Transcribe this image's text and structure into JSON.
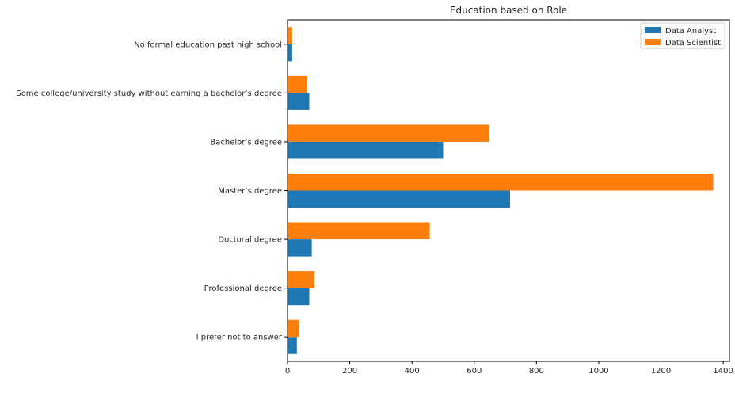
{
  "chart_data": {
    "type": "bar",
    "orientation": "horizontal",
    "title": "Education based on Role",
    "xlabel": "",
    "ylabel": "",
    "xlim": [
      0,
      1420
    ],
    "xticks": [
      0,
      200,
      400,
      600,
      800,
      1000,
      1200,
      1400
    ],
    "grid": false,
    "legend_position": "top-right",
    "categories": [
      "No formal education past high school",
      "Some college/university study without earning a bachelor’s degree",
      "Bachelor’s degree",
      "Master’s degree",
      "Doctoral degree",
      "Professional degree",
      "I prefer not to answer"
    ],
    "series": [
      {
        "name": "Data Analyst",
        "color": "#1f77b4",
        "values": [
          15,
          70,
          500,
          715,
          78,
          70,
          30
        ]
      },
      {
        "name": "Data Scientist",
        "color": "#ff7f0e",
        "values": [
          15,
          63,
          648,
          1368,
          457,
          87,
          36
        ]
      }
    ]
  }
}
